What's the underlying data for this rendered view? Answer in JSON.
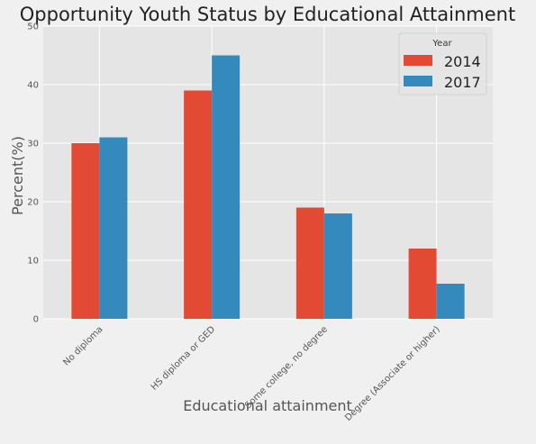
{
  "chart_data": {
    "type": "bar",
    "title": "Opportunity Youth Status by Educational Attainment",
    "xlabel": "Educational attainment",
    "ylabel": "Percent(%)",
    "categories": [
      "No diploma",
      "HS diploma or GED",
      "Some college, no degree",
      "Degree (Associate or higher)"
    ],
    "series": [
      {
        "name": "2014",
        "values": [
          30,
          39,
          19,
          12
        ],
        "color": "#e24a33"
      },
      {
        "name": "2017",
        "values": [
          31,
          45,
          18,
          6
        ],
        "color": "#348abd"
      }
    ],
    "ylim": [
      0,
      50
    ],
    "yticks": [
      "0",
      "10",
      "20",
      "30",
      "40",
      "50"
    ],
    "grid": true,
    "legend": {
      "title": "Year",
      "position": "top-right"
    },
    "colors": {
      "plot_background": "#e5e5e5",
      "figure_background": "#f0f0f0",
      "grid": "#ffffff"
    }
  }
}
